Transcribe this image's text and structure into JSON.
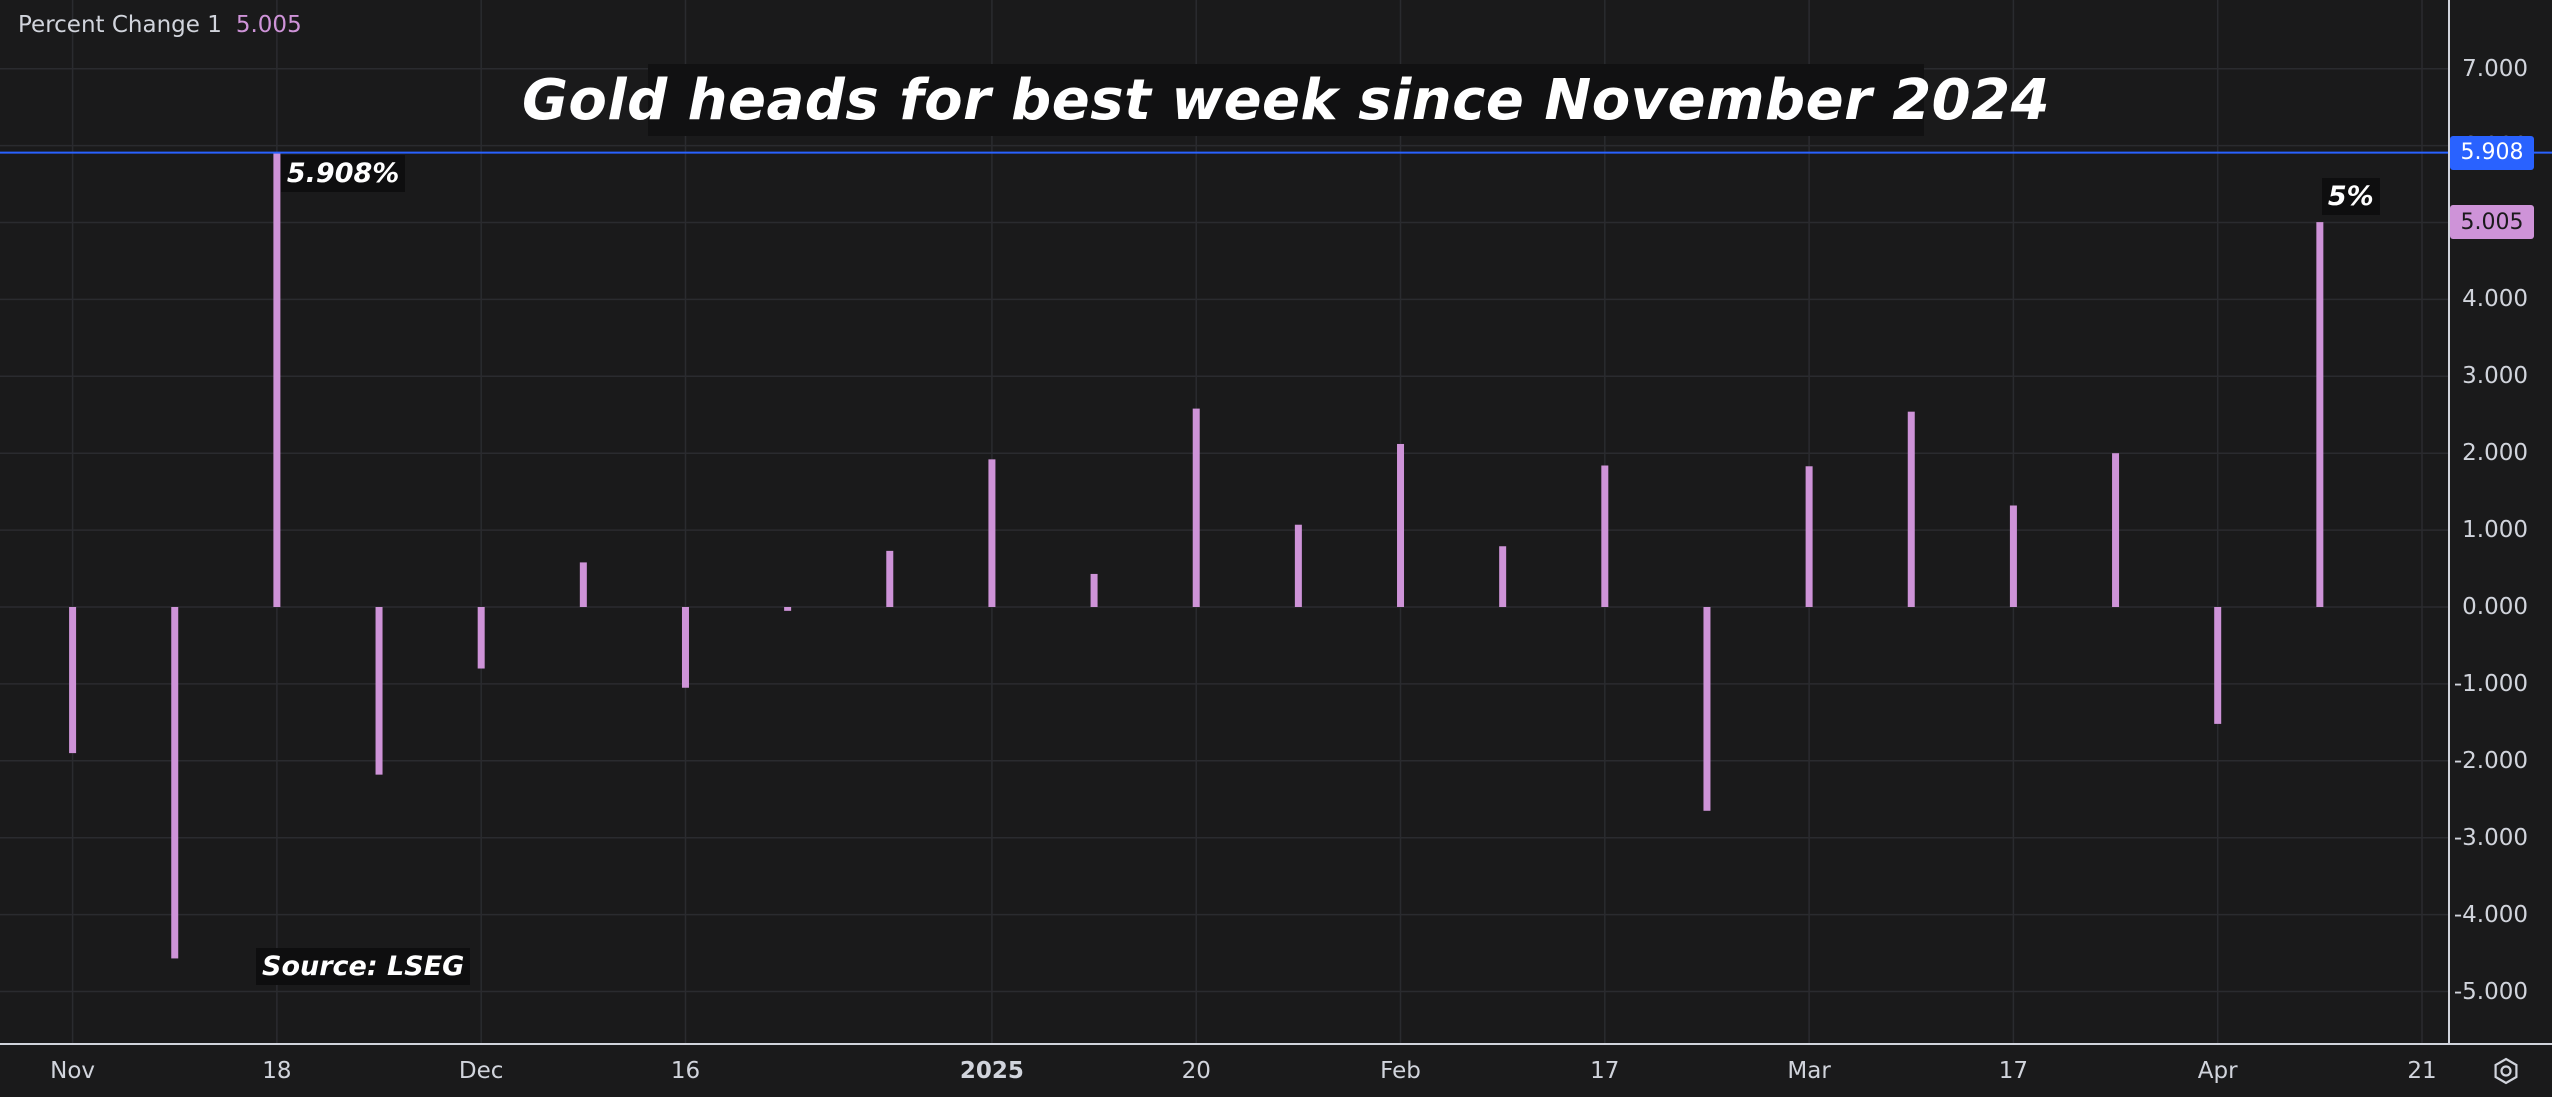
{
  "legend": {
    "label": "Percent Change 1",
    "value": "5.005"
  },
  "chart_data": {
    "type": "bar",
    "title": "Gold heads for best week since November 2024",
    "source_note": "Source: LSEG",
    "x": [
      "2024-11-01",
      "2024-11-08",
      "2024-11-15",
      "2024-11-22",
      "2024-11-29",
      "2024-12-06",
      "2024-12-13",
      "2024-12-20",
      "2024-12-27",
      "2025-01-03",
      "2025-01-10",
      "2025-01-17",
      "2025-01-24",
      "2025-01-31",
      "2025-02-07",
      "2025-02-14",
      "2025-02-21",
      "2025-02-28",
      "2025-03-07",
      "2025-03-14",
      "2025-03-21",
      "2025-03-28",
      "2025-04-04"
    ],
    "series": [
      {
        "values": [
          -1.9,
          -4.57,
          5.908,
          -2.18,
          -0.8,
          0.58,
          -1.05,
          -0.05,
          0.73,
          1.92,
          0.43,
          2.58,
          1.07,
          2.12,
          0.79,
          1.84,
          -2.65,
          1.83,
          2.54,
          1.32,
          2.0,
          -1.52,
          5.005
        ],
        "color": "#ce93d8"
      }
    ],
    "ylim": [
      -5.7,
      7.8
    ],
    "yticks": [
      "7.000",
      "6.000",
      "5.000",
      "4.000",
      "3.000",
      "2.000",
      "1.000",
      "0.000",
      "-1.000",
      "-2.000",
      "-3.000",
      "-4.000",
      "-5.000"
    ],
    "xticks": [
      {
        "label": "Nov",
        "date": "2024-11-01",
        "bold": false
      },
      {
        "label": "18",
        "date": "2024-11-15",
        "bold": false
      },
      {
        "label": "Dec",
        "date": "2024-11-29",
        "bold": false
      },
      {
        "label": "16",
        "date": "2024-12-13",
        "bold": false
      },
      {
        "label": "2025",
        "date": "2025-01-03",
        "bold": true
      },
      {
        "label": "20",
        "date": "2025-01-17",
        "bold": false
      },
      {
        "label": "Feb",
        "date": "2025-01-31",
        "bold": false
      },
      {
        "label": "17",
        "date": "2025-02-14",
        "bold": false
      },
      {
        "label": "Mar",
        "date": "2025-02-28",
        "bold": false
      },
      {
        "label": "17",
        "date": "2025-03-14",
        "bold": false
      },
      {
        "label": "Apr",
        "date": "2025-03-28",
        "bold": false
      },
      {
        "label": "21",
        "date": "2025-04-11",
        "bold": false
      }
    ],
    "x_domain": [
      "2024-10-31",
      "2025-04-11"
    ],
    "annotations": [
      {
        "text": "5.908%",
        "date": "2024-11-15",
        "value": 5.908
      },
      {
        "text": "5%",
        "date": "2025-04-04",
        "value": 5.005
      }
    ],
    "horizontal_line": {
      "value": 5.908,
      "color": "#2962ff"
    },
    "price_badges": [
      {
        "text": "5.908",
        "value": 5.908,
        "bg": "#2962ff",
        "fg": "#ffffff"
      },
      {
        "text": "5.005",
        "value": 5.005,
        "bg": "#ce93d8",
        "fg": "#1a1a1b"
      }
    ],
    "grid": true,
    "colors": {
      "background": "#1a1a1b",
      "grid": "#2a2b2f",
      "text": "#d1d4dc",
      "bar": "#ce93d8",
      "line": "#2962ff"
    }
  }
}
